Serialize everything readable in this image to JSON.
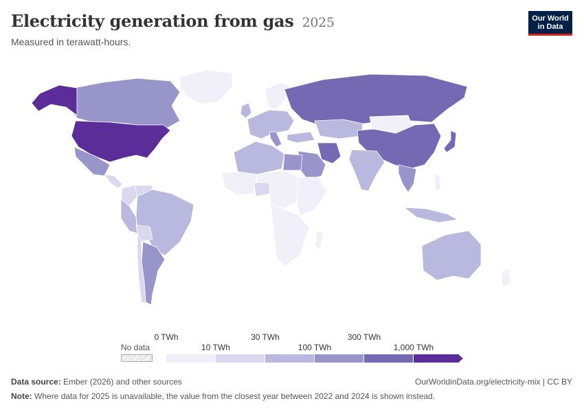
{
  "header": {
    "title": "Electricity generation from gas",
    "year": "2025",
    "subtitle": "Measured in terawatt-hours.",
    "logo_line1": "Our World",
    "logo_line2": "in Data"
  },
  "legend": {
    "no_data": "No data",
    "ticks_top": [
      "0 TWh",
      "30 TWh",
      "300 TWh"
    ],
    "ticks_bottom": [
      "10 TWh",
      "100 TWh",
      "1,000 TWh"
    ],
    "colors": [
      "#f1f0f9",
      "#d9d8ee",
      "#b9b8de",
      "#9895ca",
      "#7469b2",
      "#5a2d99"
    ]
  },
  "map_data": {
    "type": "choropleth",
    "unit": "TWh",
    "regions": [
      {
        "name": "United States",
        "class": 5
      },
      {
        "name": "Alaska",
        "class": 5
      },
      {
        "name": "Canada",
        "class": 3
      },
      {
        "name": "Greenland",
        "class": 0
      },
      {
        "name": "Mexico",
        "class": 3
      },
      {
        "name": "Central America",
        "class": 1
      },
      {
        "name": "Colombia",
        "class": 1
      },
      {
        "name": "Venezuela",
        "class": 1
      },
      {
        "name": "Brazil",
        "class": 2
      },
      {
        "name": "Peru",
        "class": 2
      },
      {
        "name": "Bolivia",
        "class": 1
      },
      {
        "name": "Argentina",
        "class": 3
      },
      {
        "name": "Chile",
        "class": 1
      },
      {
        "name": "Western Europe",
        "class": 2
      },
      {
        "name": "United Kingdom",
        "class": 2
      },
      {
        "name": "Italy",
        "class": 3
      },
      {
        "name": "Scandinavia",
        "class": 0
      },
      {
        "name": "Russia",
        "class": 4
      },
      {
        "name": "Kazakhstan",
        "class": 2
      },
      {
        "name": "China",
        "class": 4
      },
      {
        "name": "Mongolia",
        "class": 0
      },
      {
        "name": "Japan",
        "class": 4
      },
      {
        "name": "Iran",
        "class": 4
      },
      {
        "name": "Saudi Arabia",
        "class": 3
      },
      {
        "name": "Turkey",
        "class": 2
      },
      {
        "name": "India",
        "class": 2
      },
      {
        "name": "Southeast Asia",
        "class": 3
      },
      {
        "name": "Indonesia",
        "class": 2
      },
      {
        "name": "Australia",
        "class": 2
      },
      {
        "name": "North Africa",
        "class": 2
      },
      {
        "name": "Egypt",
        "class": 3
      },
      {
        "name": "West Africa",
        "class": 0
      },
      {
        "name": "Nigeria",
        "class": 1
      },
      {
        "name": "Central Africa",
        "class": 0
      },
      {
        "name": "East Africa",
        "class": 0
      },
      {
        "name": "Southern Africa",
        "class": 0
      },
      {
        "name": "Madagascar",
        "class": 0
      }
    ]
  },
  "footer": {
    "source_label": "Data source:",
    "source_text": "Ember (2026) and other sources",
    "url": "OurWorldinData.org/electricity-mix | CC BY",
    "note_label": "Note:",
    "note_text": "Where data for 2025 is unavailable, the value from the closest year between 2022 and 2024 is shown instead."
  }
}
